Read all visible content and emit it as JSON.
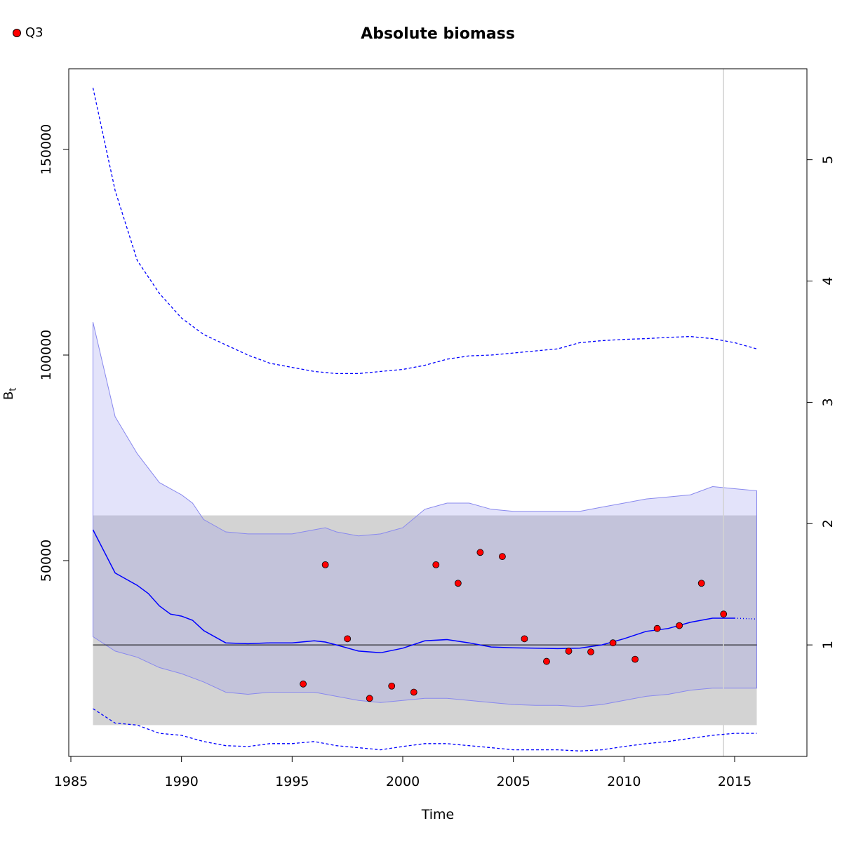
{
  "legend": {
    "label": "Q3",
    "marker_color": "#ff0000"
  },
  "chart_data": {
    "type": "line",
    "title": "Absolute biomass",
    "xlabel": "Time",
    "ylabel": "B",
    "ylabel_subscript": "t",
    "xlim": [
      1985,
      2018
    ],
    "ylim": [
      2500,
      170000
    ],
    "x_ticks": [
      1985,
      1990,
      1995,
      2000,
      2005,
      2010,
      2015
    ],
    "y_ticks": [
      50000,
      100000,
      150000
    ],
    "y_tick_labels": [
      "50000",
      "100000",
      "150000"
    ],
    "y2_ticks": [
      1,
      2,
      3,
      4,
      5
    ],
    "y2_scale_factor": 29500,
    "grid": false,
    "legend_position": "top-left",
    "reference_line_y": 29500,
    "reference_band": {
      "x": [
        1986,
        2016
      ],
      "y": [
        10000,
        61000
      ],
      "color": "#d3d3d3"
    },
    "vertical_line_x": 2014.5,
    "colors": {
      "estimate": "#0000ff",
      "ci_fill": "#9999ee",
      "band": "#d3d3d3",
      "points": "#ff0000"
    },
    "series": [
      {
        "name": "estimate",
        "style": "solid",
        "x": [
          1986,
          1987,
          1988,
          1988.5,
          1989,
          1989.5,
          1990,
          1990.5,
          1991,
          1992,
          1993,
          1994,
          1995,
          1996,
          1996.5,
          1997,
          1998,
          1999,
          2000,
          2001,
          2002,
          2003,
          2004,
          2005,
          2006,
          2007,
          2008,
          2009,
          2010,
          2011,
          2012,
          2013,
          2014,
          2015
        ],
        "values": [
          57500,
          47000,
          44000,
          42000,
          39000,
          37000,
          36500,
          35500,
          33000,
          30000,
          29800,
          30000,
          30000,
          30500,
          30200,
          29500,
          28000,
          27600,
          28700,
          30500,
          30800,
          30000,
          29000,
          28800,
          28700,
          28600,
          28700,
          29500,
          31000,
          32800,
          33500,
          35000,
          36000,
          36000
        ]
      },
      {
        "name": "estimate projection",
        "style": "dotted",
        "x": [
          2015,
          2016
        ],
        "values": [
          36000,
          35800
        ]
      },
      {
        "name": "ci-upper",
        "style": "dashed",
        "x": [
          1986,
          1987,
          1988,
          1989,
          1990,
          1991,
          1992,
          1993,
          1994,
          1995,
          1996,
          1997,
          1998,
          1999,
          2000,
          2001,
          2002,
          2003,
          2004,
          2005,
          2006,
          2007,
          2008,
          2009,
          2010,
          2011,
          2012,
          2013,
          2014,
          2015,
          2016
        ],
        "values": [
          165000,
          140000,
          123000,
          115000,
          109000,
          105000,
          102500,
          100000,
          98000,
          97000,
          96000,
          95500,
          95500,
          96000,
          96500,
          97500,
          99000,
          99800,
          100000,
          100500,
          101000,
          101500,
          103000,
          103500,
          103800,
          104000,
          104300,
          104500,
          104000,
          103000,
          101500
        ]
      },
      {
        "name": "ci-lower",
        "style": "dashed",
        "x": [
          1986,
          1987,
          1988,
          1989,
          1990,
          1991,
          1992,
          1993,
          1994,
          1995,
          1996,
          1997,
          1998,
          1999,
          2000,
          2001,
          2002,
          2003,
          2004,
          2005,
          2006,
          2007,
          2008,
          2009,
          2010,
          2011,
          2012,
          2013,
          2014,
          2015,
          2016
        ],
        "values": [
          14000,
          10500,
          10000,
          8000,
          7500,
          6000,
          5000,
          4800,
          5500,
          5500,
          6000,
          5000,
          4500,
          4000,
          4800,
          5500,
          5500,
          5000,
          4500,
          4000,
          4000,
          4000,
          3700,
          4000,
          4800,
          5500,
          6000,
          6800,
          7500,
          8000,
          8000
        ]
      },
      {
        "name": "ci-fill-upper",
        "style": "fill",
        "x": [
          1986,
          1987,
          1988,
          1989,
          1990,
          1990.5,
          1991,
          1992,
          1993,
          1994,
          1995,
          1996,
          1996.5,
          1997,
          1998,
          1999,
          2000,
          2001,
          2002,
          2003,
          2004,
          2005,
          2006,
          2007,
          2008,
          2009,
          2010,
          2011,
          2012,
          2013,
          2014,
          2015,
          2016
        ],
        "values": [
          108000,
          85000,
          76000,
          69000,
          66000,
          64000,
          60000,
          57000,
          56500,
          56500,
          56500,
          57500,
          58000,
          57000,
          56000,
          56500,
          58000,
          62500,
          64000,
          64000,
          62500,
          62000,
          62000,
          62000,
          62000,
          63000,
          64000,
          65000,
          65500,
          66000,
          68000,
          67500,
          67000
        ]
      },
      {
        "name": "ci-fill-lower",
        "style": "fill",
        "x": [
          1986,
          1987,
          1988,
          1989,
          1990,
          1991,
          1992,
          1993,
          1994,
          1995,
          1996,
          1997,
          1998,
          1999,
          2000,
          2001,
          2002,
          2003,
          2004,
          2005,
          2006,
          2007,
          2008,
          2009,
          2010,
          2011,
          2012,
          2013,
          2014,
          2015,
          2016
        ],
        "values": [
          31500,
          28000,
          26500,
          24000,
          22500,
          20500,
          18000,
          17500,
          18000,
          18000,
          18000,
          17000,
          16000,
          15500,
          16000,
          16500,
          16500,
          16000,
          15500,
          15000,
          14800,
          14800,
          14500,
          15000,
          16000,
          17000,
          17500,
          18500,
          19000,
          19000,
          19000
        ]
      },
      {
        "name": "Q3",
        "style": "points",
        "x": [
          1995.5,
          1996.5,
          1997.5,
          1998.5,
          1999.5,
          2000.5,
          2001.5,
          2002.5,
          2003.5,
          2004.5,
          2005.5,
          2006.5,
          2007.5,
          2008.5,
          2009.5,
          2010.5,
          2011.5,
          2012.5,
          2013.5,
          2014.5
        ],
        "values": [
          20000,
          49000,
          31000,
          16500,
          19500,
          18000,
          49000,
          44500,
          52000,
          51000,
          31000,
          25500,
          28000,
          27800,
          30000,
          26000,
          33500,
          34200,
          44500,
          37000
        ]
      }
    ]
  }
}
